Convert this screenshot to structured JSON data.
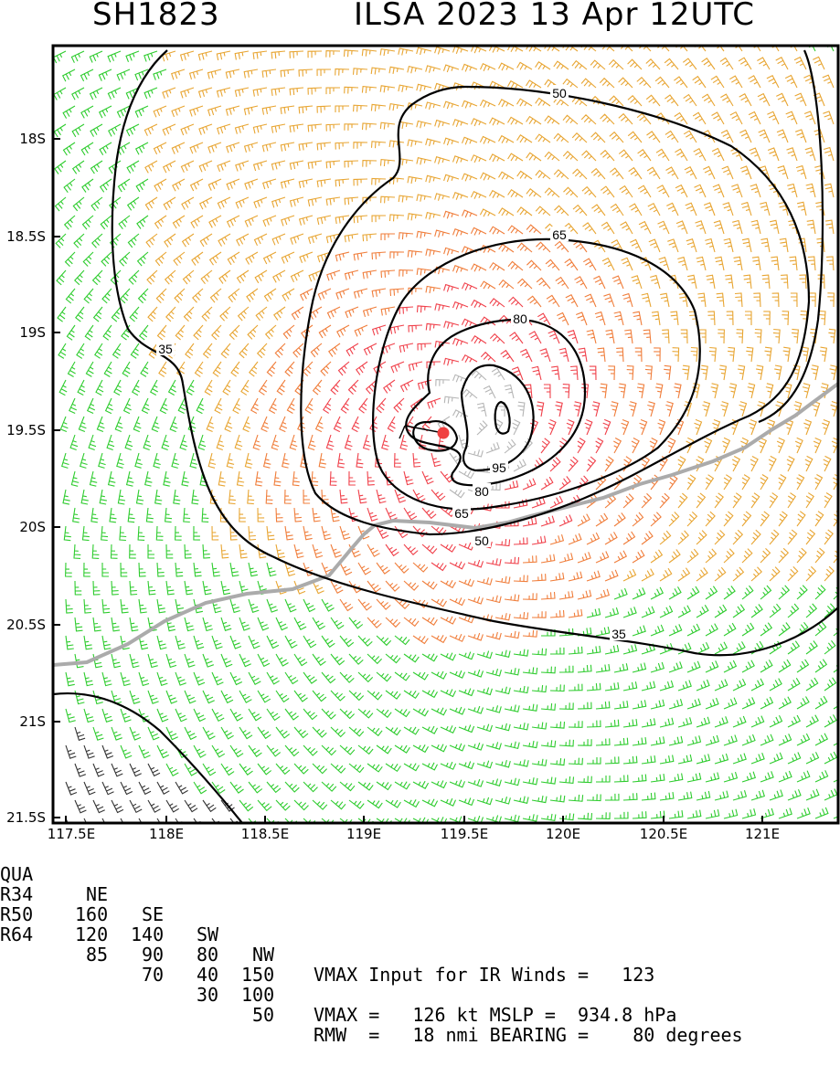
{
  "header": {
    "storm_id": "SH1823",
    "title": "ILSA 2023 13 Apr 12UTC"
  },
  "map": {
    "lat_ticks": [
      "18S",
      "18.5S",
      "19S",
      "19.5S",
      "20S",
      "20.5S",
      "21S",
      "21.5S"
    ],
    "lon_ticks": [
      "117.5E",
      "118E",
      "118.5E",
      "119E",
      "119.5E",
      "120E",
      "120.5E",
      "121E"
    ],
    "contour_labels": [
      "50",
      "65",
      "80",
      "35",
      "95",
      "80",
      "65",
      "50",
      "35"
    ],
    "colors": {
      "lt34": "#2ecc2e",
      "r34": "#e8a532",
      "r50": "#f07d3a",
      "r64": "#f0404a",
      "r95": "#b5b5b5",
      "land": "#ababab",
      "center": "#f04040",
      "old": "#333333"
    }
  },
  "radii_table": {
    "header": [
      "QUA",
      "NE",
      "SE",
      "SW",
      "NW"
    ],
    "rows": [
      [
        "R34",
        "160",
        "140",
        "80",
        "150"
      ],
      [
        "R50",
        "120",
        "90",
        "40",
        "100"
      ],
      [
        "R64",
        "85",
        "70",
        "30",
        "50"
      ]
    ]
  },
  "info_lines": [
    "VMAX Input for IR Winds =   123",
    "VMAX =   126 kt MSLP =  934.8 hPa",
    "RMW  =   18 nmi BEARING =    80 degrees"
  ]
}
